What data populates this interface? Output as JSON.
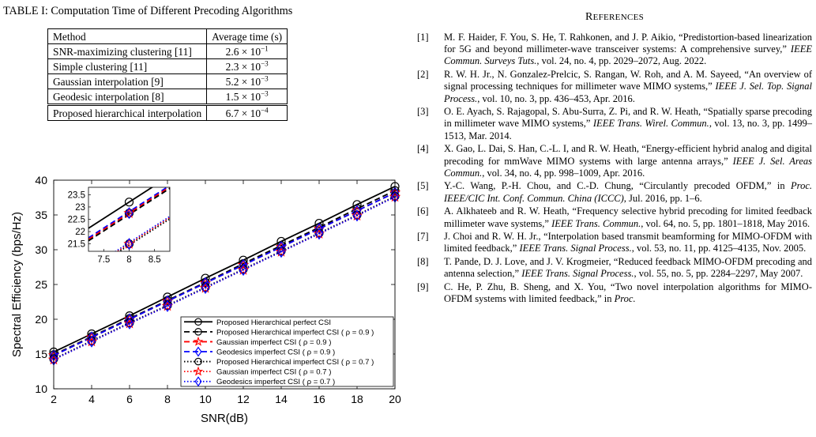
{
  "table": {
    "caption": "TABLE I: Computation Time of Different Precoding Algorithms",
    "headers": [
      "Method",
      "Average time (s)"
    ],
    "rows": [
      {
        "method": "SNR-maximizing clustering [11]",
        "mantissa": "2.6",
        "exp": "−1",
        "bold": false
      },
      {
        "method": "Simple clustering [11]",
        "mantissa": "2.3",
        "exp": "−3",
        "bold": false
      },
      {
        "method": "Gaussian interpolation [9]",
        "mantissa": "5.2",
        "exp": "−3",
        "bold": false
      },
      {
        "method": "Geodesic interpolation [8]",
        "mantissa": "1.5",
        "exp": "−3",
        "bold": false
      },
      {
        "method": "Proposed hierarchical interpolation",
        "mantissa": "6.7",
        "exp": "−4",
        "bold": true
      }
    ],
    "times_ten": "× 10"
  },
  "chart_data": {
    "type": "line",
    "xlabel": "SNR(dB)",
    "ylabel": "Spectral Efficiency (bps/Hz)",
    "xlim": [
      2,
      20
    ],
    "ylim": [
      10,
      40
    ],
    "xticks": [
      "2",
      "4",
      "6",
      "8",
      "10",
      "12",
      "14",
      "16",
      "18",
      "20"
    ],
    "yticks": [
      "10",
      "15",
      "20",
      "25",
      "30",
      "35",
      "40"
    ],
    "x": [
      2,
      4,
      6,
      8,
      10,
      12,
      14,
      16,
      18,
      20
    ],
    "legend_position": "bottom-right",
    "series": [
      {
        "name": "Proposed Hierarchical perfect CSI",
        "color": "#000000",
        "dash": "solid",
        "marker": "circle",
        "values": [
          15.3,
          17.9,
          20.5,
          23.2,
          25.9,
          28.5,
          31.2,
          33.8,
          36.5,
          39.1
        ]
      },
      {
        "name": "Proposed Hierarchical imperfect CSI ( ρ = 0.9 )",
        "color": "#000000",
        "dash": "dashed",
        "marker": "circle-minus",
        "values": [
          14.9,
          17.5,
          20.1,
          22.7,
          25.3,
          28.0,
          30.6,
          33.2,
          35.9,
          38.5
        ]
      },
      {
        "name": "Gaussian imperfect CSI ( ρ = 0.9 )",
        "color": "#ff0000",
        "dash": "dashed",
        "marker": "star",
        "values": [
          14.8,
          17.4,
          20.0,
          22.6,
          25.2,
          27.8,
          30.4,
          33.0,
          35.6,
          38.2
        ]
      },
      {
        "name": "Geodesics imperfect CSI ( ρ = 0.9 )",
        "color": "#0000ff",
        "dash": "dashed",
        "marker": "diamond",
        "values": [
          14.8,
          17.4,
          20.0,
          22.6,
          25.2,
          27.8,
          30.4,
          33.0,
          35.6,
          38.2
        ]
      },
      {
        "name": "Proposed Hierarchical imperfect CSI ( ρ = 0.7 )",
        "color": "#000000",
        "dash": "dotted",
        "marker": "circle",
        "values": [
          14.3,
          16.9,
          19.5,
          22.0,
          24.6,
          27.2,
          29.8,
          32.4,
          35.0,
          37.7
        ]
      },
      {
        "name": "Gaussian imperfect CSI ( ρ = 0.7 )",
        "color": "#ff0000",
        "dash": "dotted",
        "marker": "star",
        "values": [
          14.2,
          16.8,
          19.4,
          21.9,
          24.5,
          27.1,
          29.7,
          32.3,
          34.9,
          37.6
        ]
      },
      {
        "name": "Geodesics imperfect CSI ( ρ = 0.7 )",
        "color": "#0000ff",
        "dash": "dotted",
        "marker": "diamond",
        "values": [
          14.2,
          16.8,
          19.4,
          21.9,
          24.5,
          27.1,
          29.7,
          32.3,
          34.9,
          37.6
        ]
      }
    ],
    "inset": {
      "xlim": [
        7.2,
        8.8
      ],
      "ylim": [
        21.2,
        23.8
      ],
      "xticks": [
        "7.5",
        "8",
        "8.5"
      ],
      "yticks": [
        "21.5",
        "22",
        "22.5",
        "23",
        "23.5"
      ],
      "marker_x": 8,
      "points": {
        "perfect": 23.2,
        "imperfect09": 22.75,
        "imperfect07": 21.5
      }
    }
  },
  "references": {
    "heading_first": "R",
    "heading_rest": "EFERENCES",
    "items": [
      {
        "num": "[1]",
        "pre": "M. F. Haider, F. You, S. He, T. Rahkonen, and J. P. Aikio, “Predistortion-based linearization for 5G and beyond millimeter-wave transceiver systems: A comprehensive survey,” ",
        "venue": "IEEE Commun. Surveys Tuts.",
        "post": ", vol. 24, no. 4, pp. 2029–2072, Aug. 2022."
      },
      {
        "num": "[2]",
        "pre": "R. W. H. Jr., N. Gonzalez-Prelcic, S. Rangan, W. Roh, and A. M. Sayeed, “An overview of signal processing techniques for millimeter wave MIMO systems,” ",
        "venue": "IEEE J. Sel. Top. Signal Process.",
        "post": ", vol. 10, no. 3, pp. 436–453, Apr. 2016."
      },
      {
        "num": "[3]",
        "pre": "O. E. Ayach, S. Rajagopal, S. Abu-Surra, Z. Pi, and R. W. Heath, “Spatially sparse precoding in millimeter wave MIMO systems,” ",
        "venue": "IEEE Trans. Wirel. Commun.",
        "post": ", vol. 13, no. 3, pp. 1499–1513, Mar. 2014."
      },
      {
        "num": "[4]",
        "pre": "X. Gao, L. Dai, S. Han, C.-L. I, and R. W. Heath, “Energy-efficient hybrid analog and digital precoding for mmWave MIMO systems with large antenna arrays,” ",
        "venue": "IEEE J. Sel. Areas Commun.",
        "post": ", vol. 34, no. 4, pp. 998–1009, Apr. 2016."
      },
      {
        "num": "[5]",
        "pre": "Y.-C. Wang, P.-H. Chou, and C.-D. Chung, “Circulantly precoded OFDM,” in ",
        "venue": "Proc. IEEE/CIC Int. Conf. Commun. China (ICCC)",
        "post": ", Jul. 2016, pp. 1–6."
      },
      {
        "num": "[6]",
        "pre": "A. Alkhateeb and R. W. Heath, “Frequency selective hybrid precoding for limited feedback millimeter wave systems,” ",
        "venue": "IEEE Trans. Commun.",
        "post": ", vol. 64, no. 5, pp. 1801–1818, May 2016."
      },
      {
        "num": "[7]",
        "pre": "J. Choi and R. W. H. Jr., “Interpolation based transmit beamforming for MIMO-OFDM with limited feedback,” ",
        "venue": "IEEE Trans. Signal Process.",
        "post": ", vol. 53, no. 11, pp. 4125–4135, Nov. 2005."
      },
      {
        "num": "[8]",
        "pre": "T. Pande, D. J. Love, and J. V. Krogmeier, “Reduced feedback MIMO-OFDM precoding and antenna selection,” ",
        "venue": "IEEE Trans. Signal Process.",
        "post": ", vol. 55, no. 5, pp. 2284–2297, May 2007."
      },
      {
        "num": "[9]",
        "pre": "C. He, P. Zhu, B. Sheng, and X. You, “Two novel interpolation algorithms for MIMO-OFDM systems with limited feedback,” in ",
        "venue": "Proc.",
        "post": ""
      }
    ]
  }
}
